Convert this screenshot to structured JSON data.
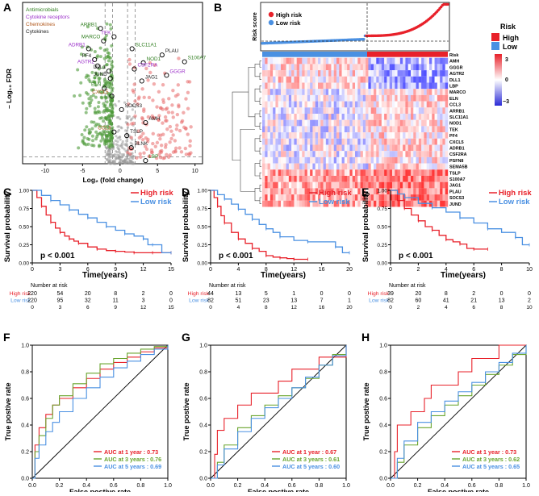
{
  "panels": [
    "A",
    "B",
    "C",
    "D",
    "E",
    "F",
    "G",
    "H"
  ],
  "colors": {
    "high": "#e8212a",
    "low": "#4a90e2",
    "auc1": "#e8212a",
    "auc3": "#6aa52f",
    "auc5": "#4a90e2",
    "dash": "#7f7f7f"
  },
  "chart_data": [
    {
      "id": "A",
      "type": "scatter",
      "title": "",
      "xlabel": "Log₂ (fold change)",
      "ylabel": "– Log₁₀ FDR",
      "xticks": [
        "-10",
        "-5",
        "0",
        "5",
        "10"
      ],
      "xlim": [
        -13,
        11
      ],
      "ylim": [
        0,
        31
      ],
      "legend": [
        {
          "label": "Antimicrobials",
          "color": "#2e7d1e"
        },
        {
          "label": "Cytokine receptors",
          "color": "#9b2fc9"
        },
        {
          "label": "Chemokines",
          "color": "#b0571a"
        },
        {
          "label": "Cytokines",
          "color": "#1a1a1a"
        }
      ],
      "labels": [
        {
          "text": "ARRB1",
          "x": -2.6,
          "y": 26.0,
          "color": "#2e7d1e"
        },
        {
          "text": "TEK",
          "x": -0.8,
          "y": 24.4,
          "color": "#9b2fc9"
        },
        {
          "text": "MARCO",
          "x": -2.2,
          "y": 23.6,
          "color": "#2e7d1e"
        },
        {
          "text": "ADRB1",
          "x": -4.2,
          "y": 22.1,
          "color": "#9b2fc9"
        },
        {
          "text": "SLC11A1",
          "x": 1.6,
          "y": 22.1,
          "color": "#2e7d1e"
        },
        {
          "text": "PF4",
          "x": -3.4,
          "y": 20.0,
          "color": "#1a1a1a"
        },
        {
          "text": "NOD1",
          "x": 3.1,
          "y": 19.4,
          "color": "#2e7d1e"
        },
        {
          "text": "PLAU",
          "x": 5.6,
          "y": 20.9,
          "color": "#1a1a1a"
        },
        {
          "text": "S100A7",
          "x": 8.6,
          "y": 19.6,
          "color": "#2e7d1e"
        },
        {
          "text": "AGTR2",
          "x": -3.0,
          "y": 18.8,
          "color": "#9b2fc9"
        },
        {
          "text": "CSF2RA",
          "x": 1.9,
          "y": 18.2,
          "color": "#9b2fc9"
        },
        {
          "text": "DLL1",
          "x": -1.5,
          "y": 17.8,
          "color": "#1a1a1a"
        },
        {
          "text": "GGGR",
          "x": 6.2,
          "y": 17.0,
          "color": "#9b2fc9"
        },
        {
          "text": "JUND",
          "x": -1.3,
          "y": 16.4,
          "color": "#1a1a1a"
        },
        {
          "text": "JAG1",
          "x": 2.9,
          "y": 15.9,
          "color": "#1a1a1a"
        },
        {
          "text": "ELN",
          "x": -2.1,
          "y": 14.5,
          "color": "#2e7d1e"
        },
        {
          "text": "CXCL5",
          "x": -1.1,
          "y": 13.0,
          "color": "#b0571a"
        },
        {
          "text": "SOCS3",
          "x": 0.2,
          "y": 10.4,
          "color": "#1a1a1a"
        },
        {
          "text": "AMH",
          "x": 3.4,
          "y": 7.9,
          "color": "#1a1a1a"
        },
        {
          "text": "CCL3",
          "x": -0.8,
          "y": 6.1,
          "color": "#b0571a"
        },
        {
          "text": "TSLP",
          "x": 0.9,
          "y": 5.4,
          "color": "#1a1a1a"
        },
        {
          "text": "BLNK",
          "x": 1.5,
          "y": 3.1,
          "color": "#1a1a1a"
        },
        {
          "text": "LBP",
          "x": 3.4,
          "y": 0.6,
          "color": "#2e7d1e"
        }
      ]
    },
    {
      "id": "B",
      "type": "heatmap",
      "ylabel": "Risk score",
      "legend": [
        "High risk",
        "Low risk"
      ],
      "risk_legend_title": "Risk",
      "risk_legend": [
        "High",
        "Low"
      ],
      "color_scale": [
        "3",
        "0",
        "−3"
      ],
      "row_labels": [
        "Risk",
        "AMH",
        "GGGR",
        "AGTR2",
        "DLL1",
        "LBP",
        "MARCO",
        "ELN",
        "CCL3",
        "ARRB1",
        "SLC11A1",
        "NOD1",
        "TEK",
        "PF4",
        "CXCL5",
        "ADRB1",
        "CSF2RA",
        "PSFN8",
        "SEMA5B",
        "TSLP",
        "S100A7",
        "JAG1",
        "PLAU",
        "SOCS3",
        "JUND"
      ]
    },
    {
      "id": "C",
      "type": "line",
      "subtype": "kaplan-meier",
      "xlabel": "Time(years)",
      "ylabel": "Survival probability",
      "xticks": [
        "0",
        "3",
        "6",
        "9",
        "12",
        "15"
      ],
      "xlim": [
        0,
        15
      ],
      "yticks": [
        "0.00",
        "0.25",
        "0.50",
        "0.75",
        "1.00"
      ],
      "ylim": [
        0,
        1
      ],
      "pvalue": "p < 0.001",
      "legend": [
        "High risk",
        "Low risk"
      ],
      "series": [
        {
          "name": "High risk",
          "x": [
            0,
            0.5,
            1,
            1.5,
            2,
            2.5,
            3,
            3.5,
            4,
            4.5,
            5,
            6,
            7,
            8,
            9,
            10,
            11,
            12,
            13,
            14,
            15
          ],
          "y": [
            1,
            0.9,
            0.78,
            0.66,
            0.56,
            0.48,
            0.42,
            0.37,
            0.33,
            0.3,
            0.27,
            0.22,
            0.19,
            0.17,
            0.16,
            0.15,
            0.14,
            0.14,
            0.14,
            0.14,
            0.14
          ]
        },
        {
          "name": "Low risk",
          "x": [
            0,
            1,
            2,
            3,
            4,
            5,
            6,
            7,
            8,
            9,
            10,
            11,
            12,
            12.5,
            13,
            14,
            15
          ],
          "y": [
            1,
            0.93,
            0.86,
            0.8,
            0.73,
            0.67,
            0.62,
            0.56,
            0.5,
            0.45,
            0.4,
            0.37,
            0.33,
            0.25,
            0.25,
            0.14,
            0.14
          ]
        }
      ],
      "risk_table": {
        "title": "Number at risk",
        "rows": [
          {
            "name": "High risk",
            "values": [
              "220",
              "54",
              "20",
              "8",
              "2",
              "0"
            ]
          },
          {
            "name": "Low risk",
            "values": [
              "220",
              "95",
              "32",
              "11",
              "3",
              "0"
            ]
          }
        ],
        "times": [
          "0",
          "3",
          "6",
          "9",
          "12",
          "15"
        ]
      }
    },
    {
      "id": "D",
      "type": "line",
      "subtype": "kaplan-meier",
      "xlabel": "Time(years)",
      "ylabel": "Survival probability",
      "xticks": [
        "0",
        "4",
        "8",
        "12",
        "16",
        "20"
      ],
      "xlim": [
        0,
        20
      ],
      "yticks": [
        "0.00",
        "0.25",
        "0.50",
        "0.75",
        "1.00"
      ],
      "ylim": [
        0,
        1
      ],
      "pvalue": "p < 0.001",
      "legend": [
        "High risk",
        "Low risk"
      ],
      "series": [
        {
          "name": "High risk",
          "x": [
            0,
            0.5,
            1,
            1.5,
            2,
            3,
            4,
            5,
            6,
            7,
            8,
            9,
            10,
            11,
            12,
            13,
            14
          ],
          "y": [
            1,
            0.9,
            0.78,
            0.65,
            0.55,
            0.42,
            0.33,
            0.27,
            0.2,
            0.16,
            0.1,
            0.08,
            0.07,
            0.06,
            0.05,
            0.05,
            0.05
          ]
        },
        {
          "name": "Low risk",
          "x": [
            0,
            1,
            2,
            3,
            4,
            5,
            6,
            7,
            8,
            9,
            10,
            12,
            14,
            16,
            18,
            19,
            20
          ],
          "y": [
            1,
            0.94,
            0.88,
            0.81,
            0.74,
            0.67,
            0.6,
            0.53,
            0.47,
            0.42,
            0.36,
            0.31,
            0.29,
            0.29,
            0.22,
            0.14,
            0.14
          ]
        }
      ],
      "risk_table": {
        "title": "Number at risk",
        "rows": [
          {
            "name": "High risk",
            "values": [
              "44",
              "13",
              "5",
              "1",
              "0",
              "0"
            ]
          },
          {
            "name": "Low risk",
            "values": [
              "82",
              "51",
              "23",
              "13",
              "7",
              "1"
            ]
          }
        ],
        "times": [
          "0",
          "4",
          "8",
          "12",
          "16",
          "20"
        ]
      }
    },
    {
      "id": "E",
      "type": "line",
      "subtype": "kaplan-meier",
      "xlabel": "Time(years)",
      "ylabel": "Survival probability",
      "xticks": [
        "0",
        "2",
        "4",
        "6",
        "8",
        "10"
      ],
      "xlim": [
        0,
        10
      ],
      "yticks": [
        "0.00",
        "0.25",
        "0.50",
        "0.75",
        "1.00"
      ],
      "ylim": [
        0,
        1
      ],
      "pvalue": "p < 0.001",
      "legend": [
        "High risk",
        "Low risk"
      ],
      "series": [
        {
          "name": "High risk",
          "x": [
            0,
            0.5,
            1,
            1.5,
            2,
            2.5,
            3,
            3.5,
            4,
            4.5,
            5,
            5.5,
            6,
            6.5,
            7
          ],
          "y": [
            1,
            0.86,
            0.75,
            0.66,
            0.58,
            0.5,
            0.45,
            0.38,
            0.32,
            0.29,
            0.26,
            0.2,
            0.19,
            0.19,
            0.19
          ]
        },
        {
          "name": "Low risk",
          "x": [
            0,
            0.5,
            1,
            2,
            3,
            4,
            5,
            6,
            7,
            8,
            9,
            9.5,
            10
          ],
          "y": [
            1,
            0.95,
            0.9,
            0.82,
            0.76,
            0.7,
            0.62,
            0.55,
            0.47,
            0.42,
            0.35,
            0.25,
            0.25
          ]
        }
      ],
      "risk_table": {
        "title": "Number at risk",
        "rows": [
          {
            "name": "High risk",
            "values": [
              "39",
              "20",
              "8",
              "2",
              "0",
              "0"
            ]
          },
          {
            "name": "Low risk",
            "values": [
              "82",
              "60",
              "41",
              "21",
              "13",
              "2"
            ]
          }
        ],
        "times": [
          "0",
          "2",
          "4",
          "6",
          "8",
          "10"
        ]
      }
    },
    {
      "id": "F",
      "type": "line",
      "subtype": "roc",
      "xlabel": "False postive rate",
      "ylabel": "True postive rate",
      "xticks": [
        "0.0",
        "0.2",
        "0.4",
        "0.6",
        "0.8",
        "1.0"
      ],
      "yticks": [
        "0.0",
        "0.2",
        "0.4",
        "0.6",
        "0.8",
        "1.0"
      ],
      "auc_labels": [
        "AUC at 1 year : 0.73",
        "AUC at 3 years : 0.76",
        "AUC at 5 years : 0.69"
      ],
      "series": [
        {
          "name": "1 year",
          "x": [
            0,
            0.02,
            0.05,
            0.1,
            0.15,
            0.2,
            0.3,
            0.4,
            0.5,
            0.6,
            0.7,
            0.8,
            0.9,
            1
          ],
          "y": [
            0,
            0.25,
            0.38,
            0.48,
            0.55,
            0.6,
            0.68,
            0.75,
            0.82,
            0.87,
            0.91,
            0.95,
            0.98,
            1
          ]
        },
        {
          "name": "3 years",
          "x": [
            0,
            0.02,
            0.05,
            0.1,
            0.15,
            0.2,
            0.3,
            0.4,
            0.5,
            0.6,
            0.7,
            0.8,
            0.9,
            1
          ],
          "y": [
            0,
            0.2,
            0.32,
            0.45,
            0.55,
            0.62,
            0.71,
            0.79,
            0.86,
            0.9,
            0.94,
            0.97,
            0.99,
            1
          ]
        },
        {
          "name": "5 years",
          "x": [
            0,
            0.02,
            0.05,
            0.1,
            0.15,
            0.2,
            0.3,
            0.4,
            0.5,
            0.6,
            0.7,
            0.8,
            0.9,
            1
          ],
          "y": [
            0,
            0.15,
            0.25,
            0.35,
            0.42,
            0.5,
            0.6,
            0.68,
            0.76,
            0.83,
            0.88,
            0.93,
            0.97,
            1
          ]
        }
      ]
    },
    {
      "id": "G",
      "type": "line",
      "subtype": "roc",
      "xlabel": "False postive rate",
      "ylabel": "True postive rate",
      "xticks": [
        "0.0",
        "0.2",
        "0.4",
        "0.6",
        "0.8",
        "1.0"
      ],
      "yticks": [
        "0.0",
        "0.2",
        "0.4",
        "0.6",
        "0.8",
        "1.0"
      ],
      "auc_labels": [
        "AUC at 1 year : 0.67",
        "AUC at 3 years : 0.61",
        "AUC at 5 years : 0.60"
      ],
      "series": [
        {
          "name": "1 year",
          "x": [
            0,
            0.03,
            0.05,
            0.1,
            0.15,
            0.2,
            0.25,
            0.3,
            0.4,
            0.5,
            0.6,
            0.7,
            0.8,
            0.9,
            1
          ],
          "y": [
            0,
            0.18,
            0.36,
            0.45,
            0.45,
            0.55,
            0.55,
            0.64,
            0.64,
            0.73,
            0.82,
            0.82,
            0.91,
            0.91,
            1
          ]
        },
        {
          "name": "3 years",
          "x": [
            0,
            0.05,
            0.1,
            0.2,
            0.3,
            0.4,
            0.5,
            0.6,
            0.7,
            0.8,
            0.9,
            1
          ],
          "y": [
            0,
            0.12,
            0.25,
            0.38,
            0.47,
            0.55,
            0.62,
            0.68,
            0.75,
            0.85,
            0.93,
            1
          ]
        },
        {
          "name": "5 years",
          "x": [
            0,
            0.05,
            0.1,
            0.2,
            0.3,
            0.4,
            0.5,
            0.6,
            0.7,
            0.8,
            0.9,
            1
          ],
          "y": [
            0,
            0.1,
            0.22,
            0.35,
            0.45,
            0.53,
            0.6,
            0.68,
            0.76,
            0.85,
            0.92,
            1
          ]
        }
      ]
    },
    {
      "id": "H",
      "type": "line",
      "subtype": "roc",
      "xlabel": "False postive rate",
      "ylabel": "True postive rate",
      "xticks": [
        "0.0",
        "0.2",
        "0.4",
        "0.6",
        "0.8",
        "1.0"
      ],
      "yticks": [
        "0.0",
        "0.2",
        "0.4",
        "0.6",
        "0.8",
        "1.0"
      ],
      "auc_labels": [
        "AUC at 1 year : 0.73",
        "AUC at 3 years : 0.62",
        "AUC at 5 years : 0.65"
      ],
      "series": [
        {
          "name": "1 year",
          "x": [
            0,
            0.03,
            0.05,
            0.1,
            0.15,
            0.2,
            0.25,
            0.3,
            0.4,
            0.5,
            0.6,
            0.7,
            0.8,
            0.9,
            1
          ],
          "y": [
            0,
            0.2,
            0.4,
            0.4,
            0.5,
            0.5,
            0.6,
            0.7,
            0.7,
            0.8,
            0.9,
            0.9,
            1,
            1,
            1
          ]
        },
        {
          "name": "3 years",
          "x": [
            0,
            0.05,
            0.1,
            0.2,
            0.3,
            0.4,
            0.5,
            0.6,
            0.7,
            0.8,
            0.9,
            1
          ],
          "y": [
            0,
            0.12,
            0.25,
            0.38,
            0.47,
            0.55,
            0.62,
            0.7,
            0.78,
            0.85,
            0.93,
            1
          ]
        },
        {
          "name": "5 years",
          "x": [
            0,
            0.05,
            0.1,
            0.2,
            0.3,
            0.4,
            0.5,
            0.6,
            0.7,
            0.8,
            0.9,
            1
          ],
          "y": [
            0,
            0.15,
            0.28,
            0.42,
            0.5,
            0.58,
            0.65,
            0.72,
            0.8,
            0.87,
            0.94,
            1
          ]
        }
      ]
    }
  ]
}
